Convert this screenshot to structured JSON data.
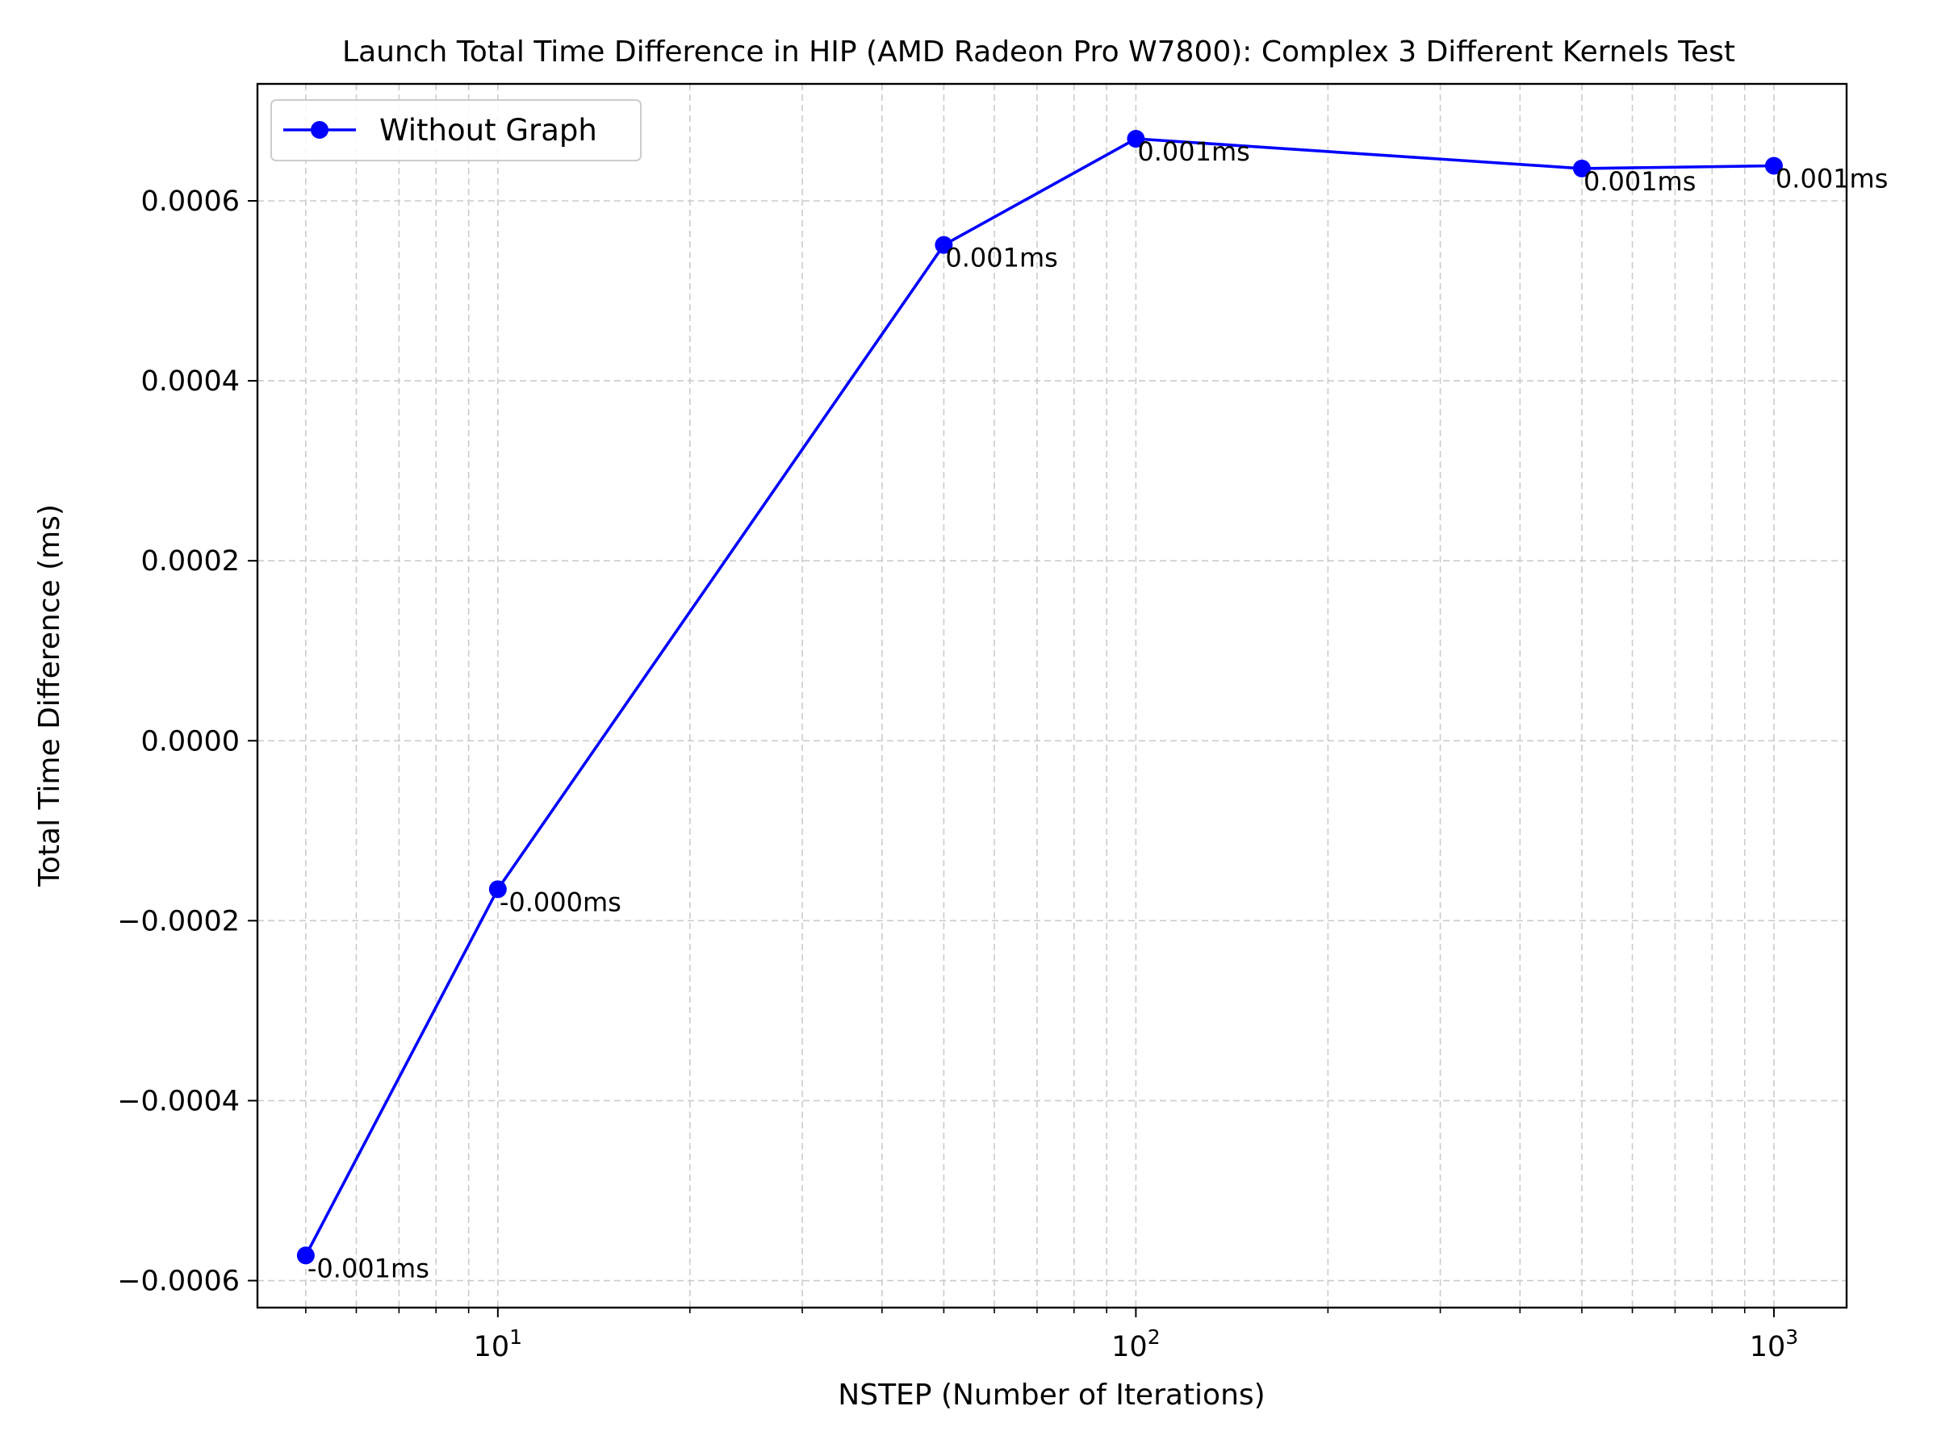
{
  "chart_data": {
    "type": "line",
    "title": "Launch Total Time Difference in HIP (AMD Radeon Pro W7800): Complex 3 Different Kernels Test",
    "xlabel": "NSTEP (Number of Iterations)",
    "ylabel": "Total Time Difference (ms)",
    "xscale": "log",
    "xlim": [
      4.2,
      1300
    ],
    "ylim": [
      -0.00063,
      0.00073
    ],
    "grid": true,
    "legend_position": "top-left",
    "x_tick_labels": [
      {
        "base": "10",
        "exp": "1",
        "value": 10
      },
      {
        "base": "10",
        "exp": "2",
        "value": 100
      },
      {
        "base": "10",
        "exp": "3",
        "value": 1000
      }
    ],
    "y_ticks": [
      -0.0006,
      -0.0004,
      -0.0002,
      0.0,
      0.0002,
      0.0004,
      0.0006
    ],
    "y_tick_labels": [
      "−0.0006",
      "−0.0004",
      "−0.0002",
      "0.0000",
      "0.0002",
      "0.0004",
      "0.0006"
    ],
    "series": [
      {
        "name": "Without Graph",
        "color": "#0000ff",
        "marker": "circle",
        "x": [
          5,
          10,
          50,
          100,
          500,
          1000
        ],
        "values": [
          -0.000572,
          -0.000165,
          0.000551,
          0.000669,
          0.000636,
          0.000639
        ],
        "data_labels": [
          "-0.001ms",
          "-0.000ms",
          "0.001ms",
          "0.001ms",
          "0.001ms",
          "0.001ms"
        ]
      }
    ]
  }
}
